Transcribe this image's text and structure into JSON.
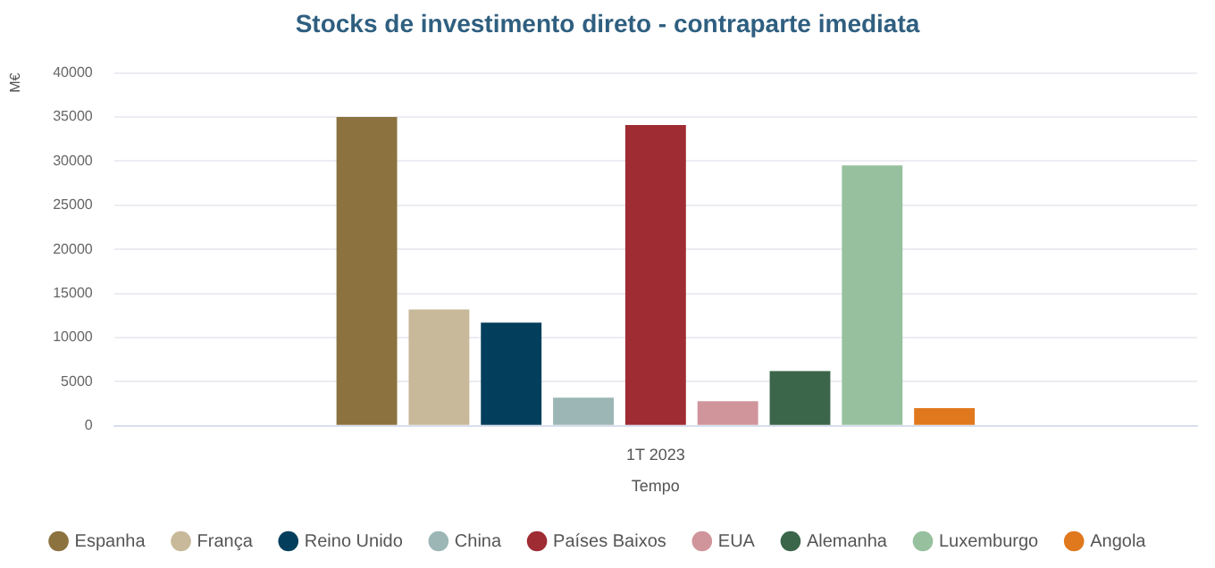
{
  "chart_data": {
    "type": "bar",
    "title": "Stocks de investimento direto - contraparte imediata",
    "xlabel": "Tempo",
    "ylabel": "M€",
    "categories": [
      "1T 2023"
    ],
    "series": [
      {
        "name": "Espanha",
        "color": "#8b723f",
        "values": [
          35000
        ]
      },
      {
        "name": "França",
        "color": "#c8b99a",
        "values": [
          13200
        ]
      },
      {
        "name": "Reino Unido",
        "color": "#033f5c",
        "values": [
          11700
        ]
      },
      {
        "name": "China",
        "color": "#9cb6b6",
        "values": [
          3200
        ]
      },
      {
        "name": "Países Baixos",
        "color": "#9f2b33",
        "values": [
          34100
        ]
      },
      {
        "name": "EUA",
        "color": "#d0959b",
        "values": [
          2800
        ]
      },
      {
        "name": "Alemanha",
        "color": "#3c6649",
        "values": [
          6200
        ]
      },
      {
        "name": "Luxemburgo",
        "color": "#97c09e",
        "values": [
          29500
        ]
      },
      {
        "name": "Angola",
        "color": "#e0781e",
        "values": [
          2000
        ]
      }
    ],
    "ylim": [
      0,
      40000
    ],
    "yticks": [
      0,
      5000,
      10000,
      15000,
      20000,
      25000,
      30000,
      35000,
      40000
    ],
    "grid": "y",
    "legend": "bottom"
  }
}
